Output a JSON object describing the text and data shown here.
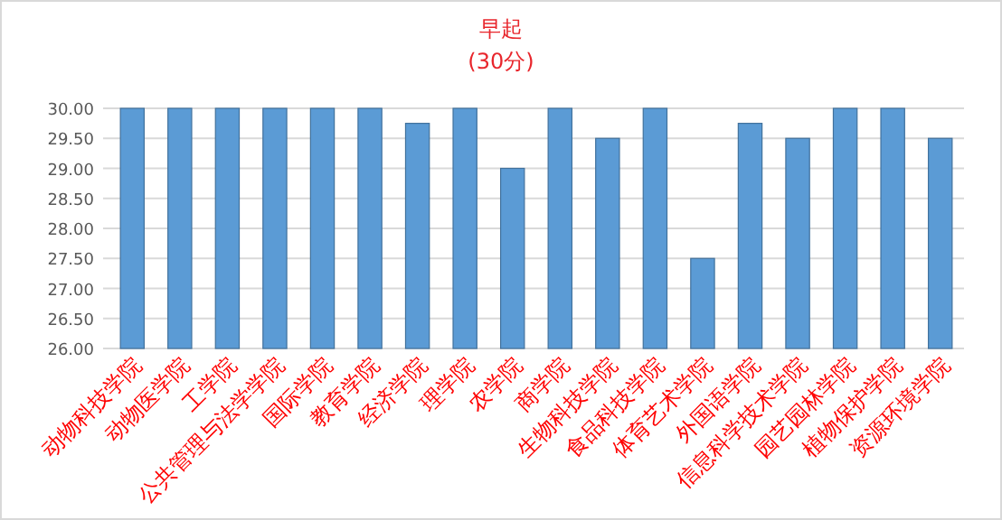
{
  "chart_data": {
    "type": "bar",
    "title": "早起",
    "subtitle": "(30分)",
    "categories": [
      "动物科技学院",
      "动物医学院",
      "工学院",
      "公共管理与法学学院",
      "国际学院",
      "教育学院",
      "经济学院",
      "理学院",
      "农学院",
      "商学院",
      "生物科技学院",
      "食品科技学院",
      "体育艺术学院",
      "外国语学院",
      "信息科学技术学院",
      "园艺园林学院",
      "植物保护学院",
      "资源环境学院"
    ],
    "values": [
      30,
      30,
      30,
      30,
      30,
      30,
      29.75,
      30,
      29,
      30,
      29.5,
      30,
      27.5,
      29.75,
      29.5,
      30,
      30,
      29.5
    ],
    "color": "#5b9bd5",
    "ylim": [
      26,
      30
    ],
    "yticks": [
      {
        "value": 26,
        "label": "26.00"
      },
      {
        "value": 26.5,
        "label": "26.50"
      },
      {
        "value": 27,
        "label": "27.00"
      },
      {
        "value": 27.5,
        "label": "27.50"
      },
      {
        "value": 28,
        "label": "28.00"
      },
      {
        "value": 28.5,
        "label": "28.50"
      },
      {
        "value": 29,
        "label": "29.00"
      },
      {
        "value": 29.5,
        "label": "29.50"
      },
      {
        "value": 30,
        "label": "30.00"
      }
    ],
    "grid": "y"
  }
}
